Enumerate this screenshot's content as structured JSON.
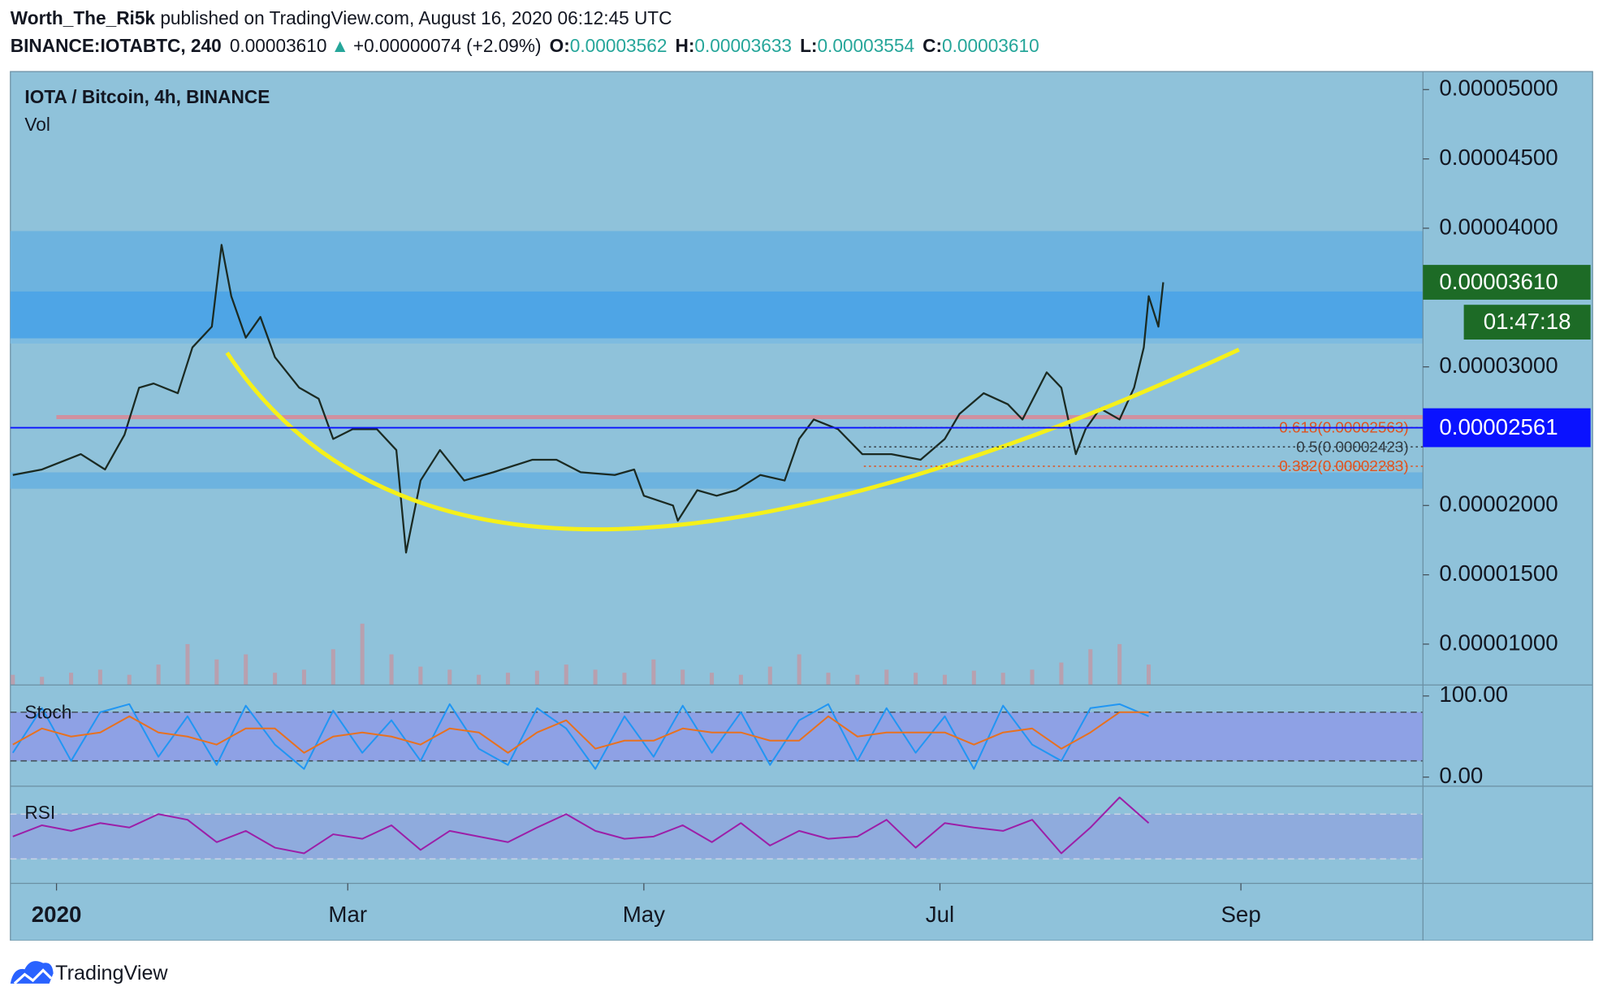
{
  "header": {
    "author": "Worth_The_Ri5k",
    "published": "published on TradingView.com, August 16, 2020 06:12:45 UTC"
  },
  "ticker": {
    "symbol": "BINANCE:IOTABTC, 240",
    "last": "0.00003610",
    "arrow": "▲",
    "change": "+0.00000074 (+2.09%)",
    "o_label": "O:",
    "o": "0.00003562",
    "h_label": "H:",
    "h": "0.00003633",
    "l_label": "L:",
    "l": "0.00003554",
    "c_label": "C:",
    "c": "0.00003610"
  },
  "chart_data": [
    {
      "type": "line",
      "title": "IOTA / Bitcoin, 4h, BINANCE",
      "subtitle": "Vol",
      "x": [
        -9,
        -3,
        5,
        10,
        14,
        17,
        20,
        25,
        28,
        32,
        34,
        36,
        39,
        42,
        45,
        50,
        54,
        57,
        61,
        66,
        70,
        72,
        75,
        79,
        84,
        90,
        98,
        103,
        108,
        115,
        119,
        121,
        127,
        128,
        132,
        136,
        140,
        145,
        150,
        153,
        156,
        161,
        166,
        172,
        178,
        183,
        186,
        191,
        196,
        199,
        204,
        207,
        210,
        212,
        215,
        219,
        222,
        224,
        225,
        227,
        228
      ],
      "series": [
        {
          "color": "#1b2a22",
          "values": [
            2.22e-05,
            2.26e-05,
            2.37e-05,
            2.26e-05,
            2.51e-05,
            2.85e-05,
            2.88e-05,
            2.81e-05,
            3.14e-05,
            3.29e-05,
            3.88e-05,
            3.51e-05,
            3.21e-05,
            3.36e-05,
            3.07e-05,
            2.85e-05,
            2.77e-05,
            2.48e-05,
            2.55e-05,
            2.55e-05,
            2.4e-05,
            1.66e-05,
            2.18e-05,
            2.4e-05,
            2.18e-05,
            2.24e-05,
            2.33e-05,
            2.33e-05,
            2.24e-05,
            2.22e-05,
            2.26e-05,
            2.07e-05,
            2e-05,
            1.89e-05,
            2.11e-05,
            2.07e-05,
            2.11e-05,
            2.22e-05,
            2.18e-05,
            2.48e-05,
            2.62e-05,
            2.55e-05,
            2.37e-05,
            2.37e-05,
            2.33e-05,
            2.48e-05,
            2.66e-05,
            2.81e-05,
            2.73e-05,
            2.62e-05,
            2.96e-05,
            2.85e-05,
            2.37e-05,
            2.55e-05,
            2.7e-05,
            2.62e-05,
            2.85e-05,
            3.14e-05,
            3.51e-05,
            3.29e-05,
            3.61e-05
          ]
        }
      ],
      "xlim": [
        -9.5,
        281.5
      ],
      "xticks": [
        {
          "value": 0,
          "label": "2020"
        },
        {
          "value": 60,
          "label": "Mar"
        },
        {
          "value": 121,
          "label": "May"
        },
        {
          "value": 182,
          "label": "Jul"
        },
        {
          "value": 244,
          "label": "Sep"
        }
      ],
      "ylim": [
        7.05e-06,
        5.13e-05
      ],
      "yticks": [
        {
          "value": 5e-05,
          "label": "0.00005000"
        },
        {
          "value": 4.5e-05,
          "label": "0.00004500"
        },
        {
          "value": 4e-05,
          "label": "0.00004000"
        },
        {
          "value": 3e-05,
          "label": "0.00003000"
        },
        {
          "value": 2e-05,
          "label": "0.00002000"
        },
        {
          "value": 1.5e-05,
          "label": "0.00001500"
        },
        {
          "value": 1e-05,
          "label": "0.00001000"
        }
      ],
      "last_price": {
        "value": 3.61e-05,
        "label": "0.00003610",
        "color": "#1d6b26"
      },
      "countdown": "01:47:18",
      "marked_price": {
        "value": 2.561e-05,
        "label": "0.00002561",
        "color": "#0a12ff"
      },
      "fib": [
        {
          "value": 2.563e-05,
          "label": "0.618(0.00002563)",
          "color": "#e0531f"
        },
        {
          "value": 2.423e-05,
          "label": "0.5(0.00002423)",
          "color": "#333d44"
        },
        {
          "value": 2.283e-05,
          "label": "0.382(0.00002283)",
          "color": "#e0531f"
        }
      ],
      "volume": {
        "color": "#c9919c",
        "lim": [
          0,
          100
        ],
        "x": [
          -9,
          -3,
          3,
          9,
          15,
          21,
          27,
          33,
          39,
          45,
          51,
          57,
          63,
          69,
          75,
          81,
          87,
          93,
          99,
          105,
          111,
          117,
          123,
          129,
          135,
          141,
          147,
          153,
          159,
          165,
          171,
          177,
          183,
          189,
          195,
          201,
          207,
          213,
          219,
          225
        ],
        "values": [
          10,
          8,
          12,
          15,
          10,
          20,
          40,
          25,
          30,
          12,
          15,
          35,
          60,
          30,
          18,
          15,
          10,
          12,
          14,
          20,
          15,
          12,
          25,
          15,
          12,
          10,
          18,
          30,
          12,
          10,
          15,
          12,
          10,
          14,
          12,
          15,
          22,
          35,
          40,
          20
        ]
      }
    },
    {
      "type": "line",
      "title": "Stoch",
      "x": [
        -9,
        -3,
        3,
        9,
        15,
        21,
        27,
        33,
        39,
        45,
        51,
        57,
        63,
        69,
        75,
        81,
        87,
        93,
        99,
        105,
        111,
        117,
        123,
        129,
        135,
        141,
        147,
        153,
        159,
        165,
        171,
        177,
        183,
        189,
        195,
        201,
        207,
        213,
        219,
        225
      ],
      "series": [
        {
          "color": "#2196f3",
          "values": [
            30,
            85,
            20,
            80,
            90,
            25,
            75,
            15,
            88,
            40,
            10,
            82,
            30,
            70,
            20,
            90,
            35,
            15,
            85,
            60,
            10,
            75,
            25,
            88,
            30,
            80,
            15,
            70,
            90,
            20,
            85,
            30,
            75,
            10,
            88,
            40,
            20,
            85,
            90,
            75
          ]
        },
        {
          "color": "#e8711f",
          "values": [
            40,
            60,
            50,
            55,
            75,
            55,
            50,
            40,
            60,
            60,
            30,
            50,
            55,
            50,
            40,
            60,
            55,
            30,
            55,
            70,
            35,
            45,
            45,
            60,
            55,
            55,
            45,
            45,
            75,
            50,
            55,
            55,
            55,
            40,
            55,
            60,
            35,
            55,
            80,
            80
          ]
        }
      ],
      "xlim": [
        -9.5,
        281.5
      ],
      "ylim": [
        -10,
        111
      ],
      "yticks": [
        {
          "value": 100,
          "label": "100.00"
        },
        {
          "value": 0,
          "label": "0.00"
        }
      ],
      "bands": [
        20,
        80
      ]
    },
    {
      "type": "line",
      "title": "RSI",
      "x": [
        -9,
        -3,
        3,
        9,
        15,
        21,
        27,
        33,
        39,
        45,
        51,
        57,
        63,
        69,
        75,
        81,
        87,
        93,
        99,
        105,
        111,
        117,
        123,
        129,
        135,
        141,
        147,
        153,
        159,
        165,
        171,
        177,
        183,
        189,
        195,
        201,
        207,
        213,
        219,
        225
      ],
      "series": [
        {
          "color": "#9c1fa8",
          "values": [
            50,
            60,
            55,
            62,
            58,
            70,
            65,
            45,
            55,
            40,
            35,
            52,
            48,
            60,
            38,
            55,
            50,
            45,
            58,
            70,
            55,
            48,
            50,
            60,
            45,
            62,
            42,
            55,
            48,
            50,
            65,
            40,
            62,
            58,
            55,
            65,
            35,
            58,
            85,
            62
          ]
        }
      ],
      "xlim": [
        -9.5,
        281.5
      ],
      "ylim": [
        10,
        94
      ],
      "bands": [
        30,
        70
      ]
    }
  ],
  "footer": {
    "brand": "TradingView"
  }
}
